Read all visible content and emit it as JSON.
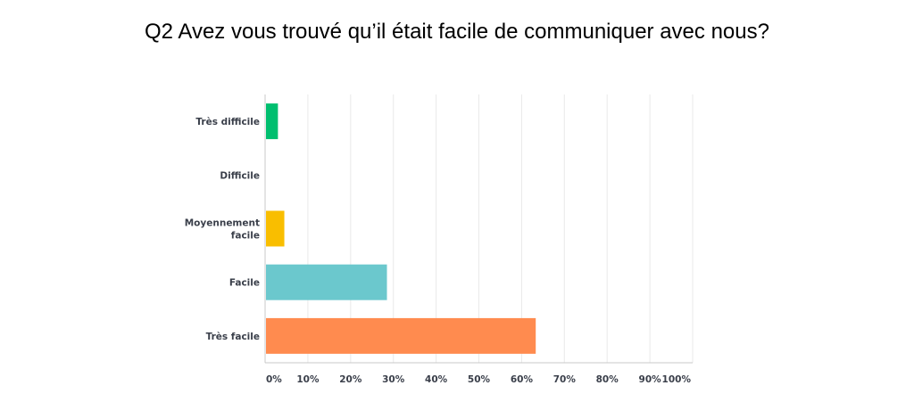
{
  "title": "Q2 Avez vous trouvé qu’il était facile de communiquer avec nous?",
  "chart_data": {
    "type": "bar",
    "orientation": "horizontal",
    "categories": [
      [
        "Très difficile"
      ],
      [
        "Difficile"
      ],
      [
        "Moyennement",
        "facile"
      ],
      [
        "Facile"
      ],
      [
        "Très facile"
      ]
    ],
    "values": [
      3,
      0,
      4.5,
      28.5,
      63.3
    ],
    "colors": [
      "#00bf6f",
      "#a05ec4",
      "#f9be00",
      "#6bc8cd",
      "#ff8b4f"
    ],
    "xlim": [
      0,
      100
    ],
    "xticks": [
      "0%",
      "10%",
      "20%",
      "30%",
      "40%",
      "50%",
      "60%",
      "70%",
      "80%",
      "90%",
      "100%"
    ],
    "grid": true
  }
}
